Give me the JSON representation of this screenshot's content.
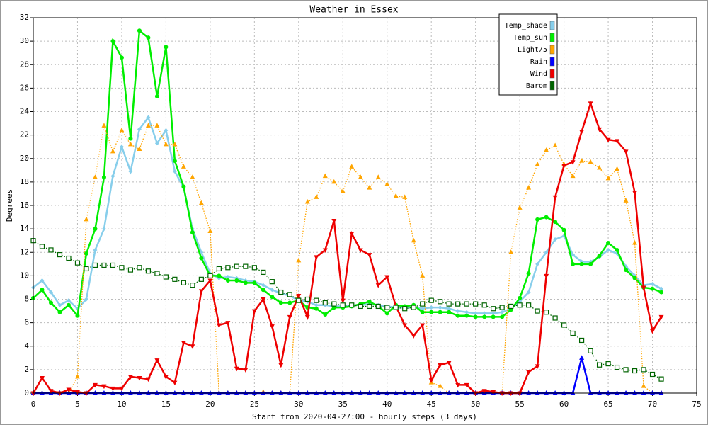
{
  "chart_data": {
    "type": "line",
    "title": "Weather in Essex",
    "xlabel": "Start from 2020-04-27:00 - hourly steps (3 days)",
    "ylabel": "Degrees",
    "x": [
      0,
      1,
      2,
      3,
      4,
      5,
      6,
      7,
      8,
      9,
      10,
      11,
      12,
      13,
      14,
      15,
      16,
      17,
      18,
      19,
      20,
      21,
      22,
      23,
      24,
      25,
      26,
      27,
      28,
      29,
      30,
      31,
      32,
      33,
      34,
      35,
      36,
      37,
      38,
      39,
      40,
      41,
      42,
      43,
      44,
      45,
      46,
      47,
      48,
      49,
      50,
      51,
      52,
      53,
      54,
      55,
      56,
      57,
      58,
      59,
      60,
      61,
      62,
      63,
      64,
      65,
      66,
      67,
      68,
      69,
      70,
      71
    ],
    "xlim": [
      0,
      75
    ],
    "xticks": [
      0,
      5,
      10,
      15,
      20,
      25,
      30,
      35,
      40,
      45,
      50,
      55,
      60,
      65,
      70,
      75
    ],
    "ylim": [
      0,
      32
    ],
    "yticks": [
      0,
      2,
      4,
      6,
      8,
      10,
      12,
      14,
      16,
      18,
      20,
      22,
      24,
      26,
      28,
      30,
      32
    ],
    "grid": true,
    "legend": "top-right",
    "series": [
      {
        "name": "Temp_shade",
        "color": "#87ceeb",
        "marker": "diamond",
        "style": "solid",
        "values": [
          9.0,
          9.6,
          8.6,
          7.5,
          7.9,
          7.2,
          8.0,
          12.2,
          14.0,
          18.5,
          21.0,
          18.9,
          22.5,
          23.5,
          21.3,
          22.4,
          18.9,
          17.5,
          14.0,
          12.0,
          10.2,
          9.8,
          9.9,
          9.8,
          9.6,
          9.5,
          9.2,
          8.8,
          8.5,
          8.3,
          7.9,
          7.8,
          7.5,
          7.5,
          7.4,
          7.4,
          7.5,
          7.5,
          7.6,
          7.5,
          7.4,
          7.3,
          7.3,
          7.3,
          7.2,
          7.3,
          7.3,
          7.2,
          7.0,
          6.9,
          6.8,
          6.8,
          6.8,
          6.9,
          7.2,
          7.8,
          8.6,
          11.0,
          12.0,
          13.1,
          13.4,
          11.8,
          11.2,
          11.2,
          11.6,
          12.2,
          11.9,
          10.8,
          10.0,
          9.2,
          9.3,
          8.9
        ]
      },
      {
        "name": "Temp_sun",
        "color": "#00ee00",
        "marker": "circle",
        "style": "solid",
        "values": [
          8.1,
          8.8,
          7.7,
          6.9,
          7.5,
          6.6,
          11.9,
          14.0,
          18.4,
          30.0,
          28.6,
          21.7,
          30.9,
          30.3,
          25.3,
          29.5,
          19.8,
          17.6,
          13.7,
          11.5,
          10.0,
          10.0,
          9.6,
          9.6,
          9.4,
          9.4,
          8.8,
          8.2,
          7.7,
          7.7,
          7.9,
          7.3,
          7.2,
          6.7,
          7.3,
          7.3,
          7.4,
          7.6,
          7.8,
          7.4,
          6.8,
          7.5,
          7.4,
          7.5,
          6.9,
          6.9,
          6.9,
          6.9,
          6.6,
          6.6,
          6.5,
          6.5,
          6.5,
          6.5,
          7.1,
          8.1,
          10.2,
          14.8,
          15.0,
          14.6,
          13.9,
          11.0,
          11.0,
          11.0,
          11.7,
          12.8,
          12.2,
          10.5,
          9.8,
          9.0,
          8.9,
          8.6
        ]
      },
      {
        "name": "Light/5",
        "color": "#ffa500",
        "marker": "triangle-up",
        "style": "dotted",
        "values": [
          0,
          0,
          0.1,
          0,
          0,
          1.4,
          14.8,
          18.4,
          22.8,
          20.6,
          22.4,
          21.2,
          20.8,
          22.8,
          22.8,
          21.2,
          21.2,
          19.3,
          18.4,
          16.2,
          13.8,
          0,
          0,
          0,
          0,
          0,
          0.1,
          0,
          0,
          0,
          11.3,
          16.3,
          16.7,
          18.5,
          18.0,
          17.2,
          19.3,
          18.4,
          17.5,
          18.4,
          17.8,
          16.8,
          16.7,
          13.0,
          10.0,
          0.9,
          0.6,
          0,
          0,
          0,
          0,
          0,
          0,
          0,
          12.0,
          15.8,
          17.5,
          19.5,
          20.7,
          21.1,
          19.5,
          18.5,
          19.8,
          19.7,
          19.2,
          18.3,
          19.1,
          16.4,
          12.8,
          0.6,
          0,
          0
        ]
      },
      {
        "name": "Rain",
        "color": "#0000ff",
        "marker": "triangle-up",
        "style": "solid",
        "values": [
          0,
          0,
          0,
          0,
          0,
          0,
          0,
          0,
          0,
          0,
          0,
          0,
          0,
          0,
          0,
          0,
          0,
          0,
          0,
          0,
          0,
          0,
          0,
          0,
          0,
          0,
          0,
          0,
          0,
          0,
          0,
          0,
          0,
          0,
          0,
          0,
          0,
          0,
          0,
          0,
          0,
          0,
          0,
          0,
          0,
          0,
          0,
          0,
          0,
          0,
          0,
          0,
          0,
          0,
          0,
          0,
          0,
          0,
          0,
          0,
          0,
          0,
          3.0,
          0,
          0,
          0,
          0,
          0,
          0,
          0,
          0,
          0
        ]
      },
      {
        "name": "Wind",
        "color": "#ee0000",
        "marker": "triangle-down",
        "style": "solid",
        "values": [
          0,
          1.3,
          0.2,
          0,
          0.3,
          0.1,
          0,
          0.7,
          0.6,
          0.4,
          0.4,
          1.4,
          1.3,
          1.2,
          2.8,
          1.4,
          0.9,
          4.3,
          4.0,
          8.7,
          9.6,
          5.8,
          6.0,
          2.1,
          2.0,
          7.0,
          8.0,
          5.7,
          2.4,
          6.5,
          8.3,
          6.5,
          11.6,
          12.2,
          14.7,
          7.9,
          13.6,
          12.2,
          11.8,
          9.2,
          9.9,
          7.4,
          5.8,
          4.9,
          5.8,
          1.1,
          2.4,
          2.6,
          0.7,
          0.7,
          0,
          0.2,
          0.1,
          0,
          0,
          0,
          1.8,
          2.3,
          10.0,
          16.7,
          19.4,
          19.7,
          22.3,
          24.7,
          22.5,
          21.6,
          21.5,
          20.6,
          17.1,
          9.0,
          5.3,
          6.5
        ]
      },
      {
        "name": "Barom",
        "color": "#006400",
        "marker": "square-open",
        "style": "dotted",
        "values": [
          13.0,
          12.5,
          12.2,
          11.8,
          11.5,
          11.1,
          10.6,
          10.9,
          10.9,
          10.9,
          10.7,
          10.5,
          10.7,
          10.4,
          10.2,
          9.9,
          9.7,
          9.4,
          9.2,
          9.7,
          10.0,
          10.6,
          10.7,
          10.8,
          10.8,
          10.7,
          10.3,
          9.5,
          8.6,
          8.4,
          7.9,
          8.0,
          7.9,
          7.7,
          7.6,
          7.5,
          7.5,
          7.4,
          7.4,
          7.4,
          7.3,
          7.3,
          7.2,
          7.3,
          7.6,
          7.9,
          7.8,
          7.6,
          7.6,
          7.6,
          7.6,
          7.5,
          7.2,
          7.3,
          7.4,
          7.5,
          7.5,
          7.0,
          6.9,
          6.4,
          5.8,
          5.1,
          4.5,
          3.6,
          2.4,
          2.5,
          2.2,
          2.0,
          1.9,
          2.0,
          1.6,
          1.2
        ]
      }
    ]
  }
}
